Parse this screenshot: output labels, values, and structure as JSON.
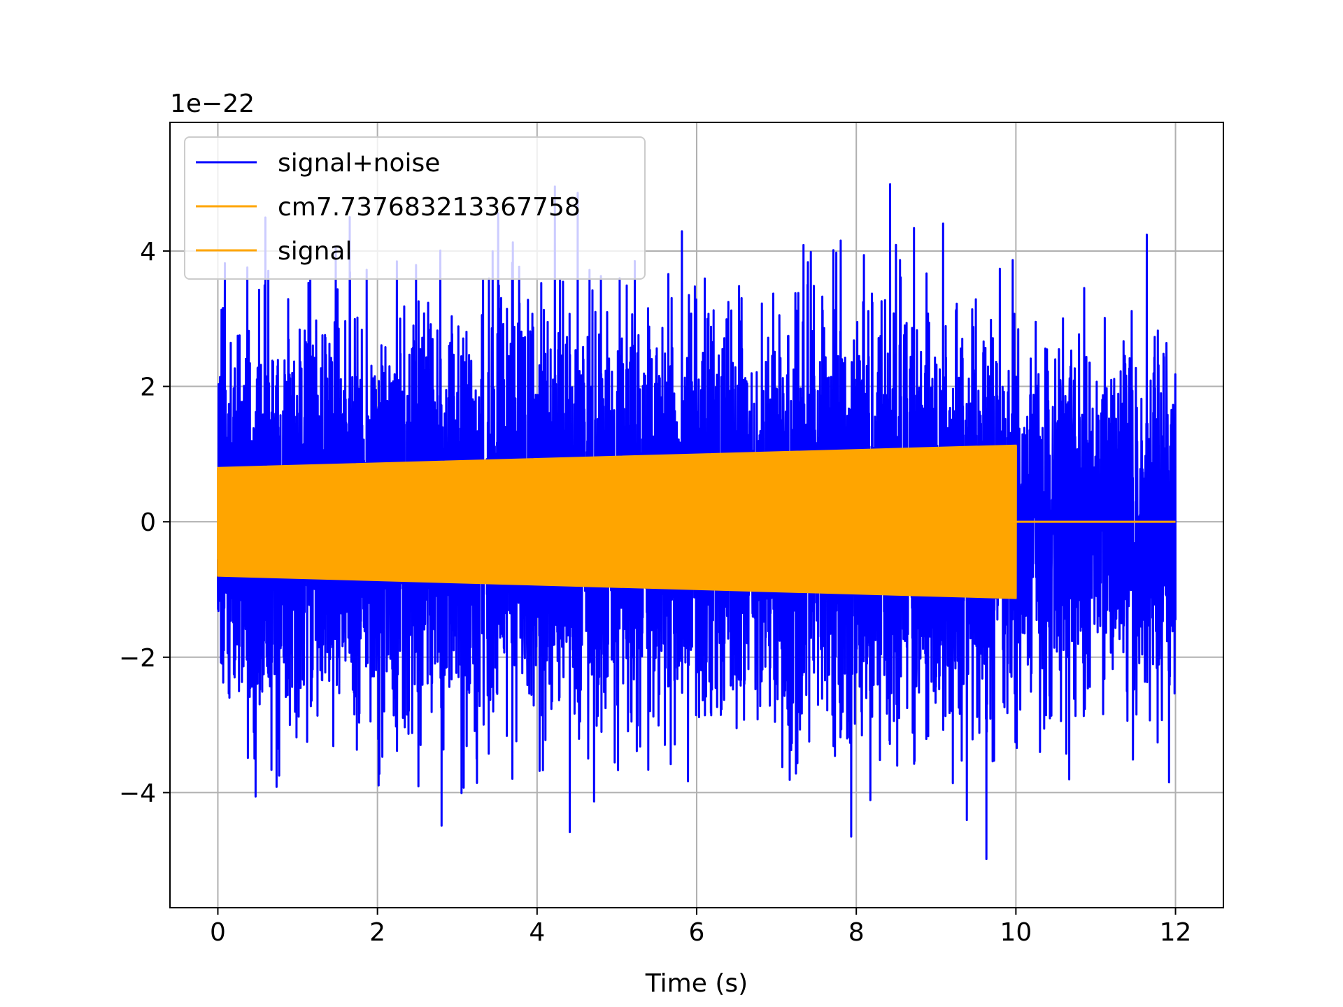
{
  "chart_data": {
    "type": "line",
    "title": "",
    "xlabel": "Time (s)",
    "ylabel": "",
    "y_offset_label": "1e−22",
    "xlim": [
      -0.6,
      12.6
    ],
    "ylim": [
      -5.7,
      5.9
    ],
    "xticks": [
      0,
      2,
      4,
      6,
      8,
      10,
      12
    ],
    "xtick_labels": [
      "0",
      "2",
      "4",
      "6",
      "8",
      "10",
      "12"
    ],
    "yticks": [
      -4,
      -2,
      0,
      2,
      4
    ],
    "ytick_labels": [
      "−4",
      "−2",
      "0",
      "2",
      "4"
    ],
    "grid": true,
    "legend_position": "top-left",
    "series": [
      {
        "name": "signal+noise",
        "color": "#0000ff",
        "x_start": 0,
        "x_end": 12,
        "min": -5.1,
        "max": 5.4
      },
      {
        "name": "cm7.737683213367758",
        "color": "#ffa500",
        "x_start": 0,
        "x_end": 12,
        "amplitude_start": 0.8,
        "amplitude_end": 1.13,
        "signal_end_time": 10
      },
      {
        "name": "signal",
        "color": "#ffa500",
        "x_start": 0,
        "x_end": 12,
        "amplitude_start": 0.8,
        "amplitude_end": 1.13,
        "signal_end_time": 10
      }
    ]
  }
}
